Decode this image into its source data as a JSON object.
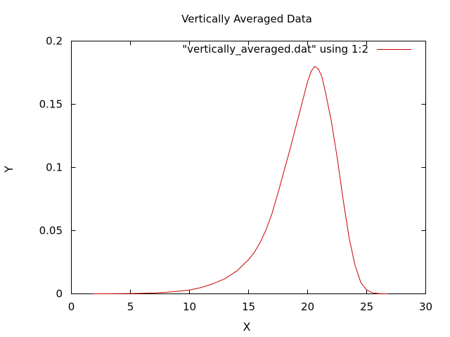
{
  "chart_data": {
    "type": "line",
    "title": "Vertically Averaged Data",
    "xlabel": "X",
    "ylabel": "Y",
    "xlim": [
      0,
      30
    ],
    "ylim": [
      0,
      0.2
    ],
    "xticks": [
      0,
      5,
      10,
      15,
      20,
      25,
      30
    ],
    "yticks": [
      0,
      0.05,
      0.1,
      0.15,
      0.2
    ],
    "x_tick_labels": [
      "0",
      "5",
      "10",
      "15",
      "20",
      "25",
      "30"
    ],
    "y_tick_labels": [
      "0",
      "0.05",
      "0.1",
      "0.15",
      "0.2"
    ],
    "grid": false,
    "legend_position": "top-right",
    "series": [
      {
        "name": "\"vertically_averaged.dat\" using 1:2",
        "color": "#cc0000",
        "x": [
          1.8,
          3,
          5,
          7,
          8,
          9,
          10,
          11,
          12,
          13,
          14,
          15,
          15.5,
          16,
          16.5,
          17,
          17.5,
          18,
          18.5,
          19,
          19.5,
          20,
          20.3,
          20.6,
          20.9,
          21.2,
          21.5,
          22,
          22.5,
          23,
          23.5,
          24,
          24.5,
          25,
          25.5,
          26,
          26.5,
          26.8
        ],
        "y": [
          0.0,
          0.0,
          0.0002,
          0.0007,
          0.0012,
          0.002,
          0.003,
          0.005,
          0.008,
          0.012,
          0.018,
          0.027,
          0.033,
          0.041,
          0.051,
          0.064,
          0.08,
          0.097,
          0.114,
          0.132,
          0.15,
          0.168,
          0.176,
          0.18,
          0.178,
          0.172,
          0.16,
          0.137,
          0.108,
          0.075,
          0.045,
          0.023,
          0.009,
          0.003,
          0.0008,
          0.0002,
          0.0,
          0.0
        ]
      }
    ]
  }
}
